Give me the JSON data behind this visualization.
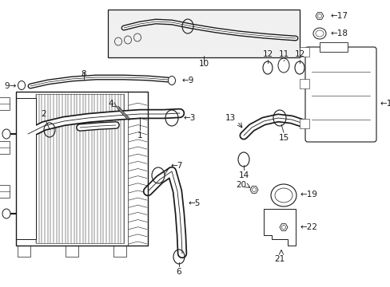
{
  "bg_color": "#ffffff",
  "lc": "#1a1a1a",
  "figsize": [
    4.89,
    3.6
  ],
  "dpi": 100,
  "xlim": [
    0,
    489
  ],
  "ylim": [
    0,
    360
  ]
}
